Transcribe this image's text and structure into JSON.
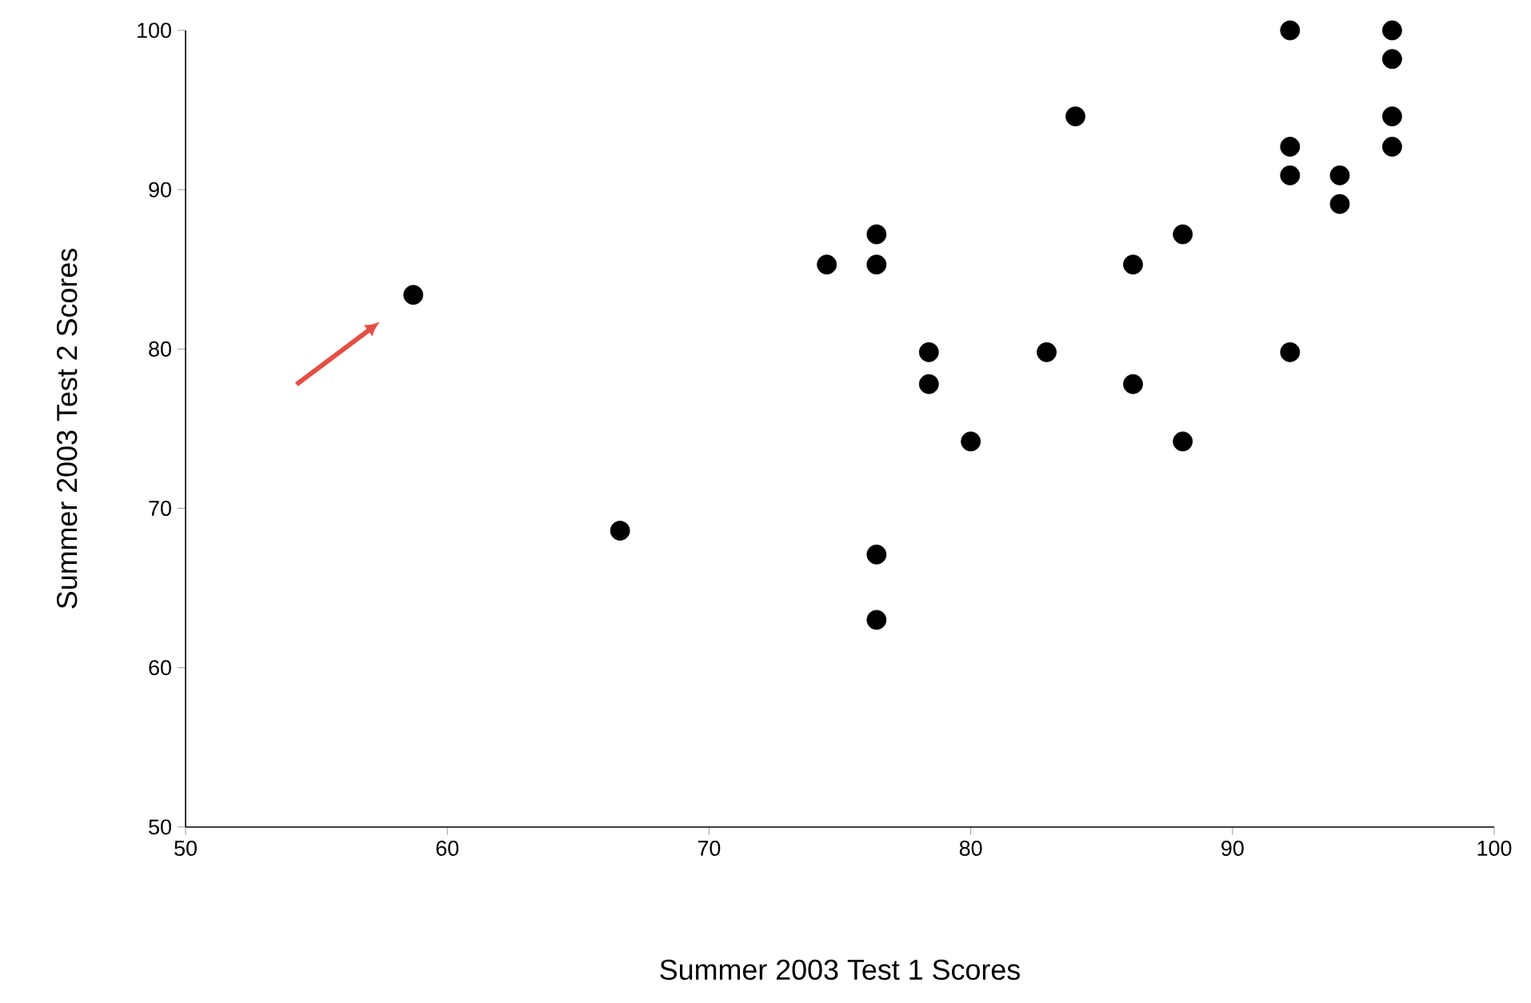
{
  "chart_data": {
    "type": "scatter",
    "xlabel": "Summer 2003 Test 1 Scores",
    "ylabel": "Summer 2003 Test 2 Scores",
    "xlim": [
      50,
      100
    ],
    "ylim": [
      50,
      100
    ],
    "xticks": [
      50,
      60,
      70,
      80,
      90,
      100
    ],
    "yticks": [
      50,
      60,
      70,
      80,
      90,
      100
    ],
    "marker": "circle",
    "grid": false,
    "series": [
      {
        "color": "#000000",
        "x": [
          58.7,
          66.6,
          74.5,
          76.4,
          76.4,
          76.4,
          76.4,
          78.4,
          78.4,
          80.0,
          84.0,
          82.9,
          86.2,
          86.2,
          88.1,
          88.1,
          92.2,
          92.2,
          92.2,
          92.2,
          94.1,
          94.1,
          96.1,
          96.1,
          96.1,
          96.1
        ],
        "values": [
          83.4,
          68.6,
          85.3,
          87.2,
          85.3,
          67.1,
          63.0,
          79.8,
          77.8,
          74.2,
          94.6,
          79.8,
          85.3,
          77.8,
          87.2,
          74.2,
          100,
          92.7,
          90.9,
          79.8,
          90.9,
          89.1,
          100,
          98.2,
          94.6,
          92.7
        ]
      }
    ]
  }
}
